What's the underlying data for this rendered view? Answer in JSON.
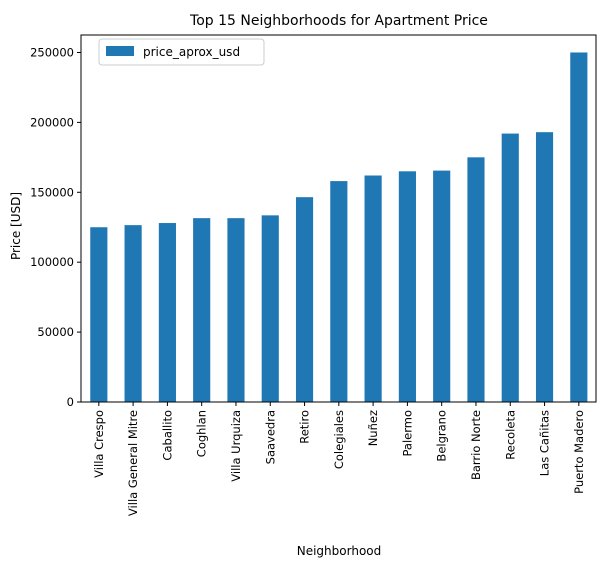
{
  "chart_data": {
    "type": "bar",
    "title": "Top 15 Neighborhoods for Apartment Price",
    "xlabel": "Neighborhood",
    "ylabel": "Price [USD]",
    "categories": [
      "Villa Crespo",
      "Villa General Mitre",
      "Caballito",
      "Coghlan",
      "Villa Urquiza",
      "Saavedra",
      "Retiro",
      "Colegiales",
      "Nuñez",
      "Palermo",
      "Belgrano",
      "Barrio Norte",
      "Recoleta",
      "Las Cañitas",
      "Puerto Madero"
    ],
    "series": [
      {
        "name": "price_aprox_usd",
        "color": "#1f77b4",
        "values": [
          125000,
          126500,
          128000,
          131500,
          131500,
          133500,
          146500,
          158000,
          162000,
          165000,
          165500,
          175000,
          192000,
          193000,
          250000
        ]
      }
    ],
    "ylim": [
      0,
      262500
    ],
    "yticks": [
      0,
      50000,
      100000,
      150000,
      200000,
      250000
    ],
    "legend_position": "top-left",
    "grid": false
  }
}
